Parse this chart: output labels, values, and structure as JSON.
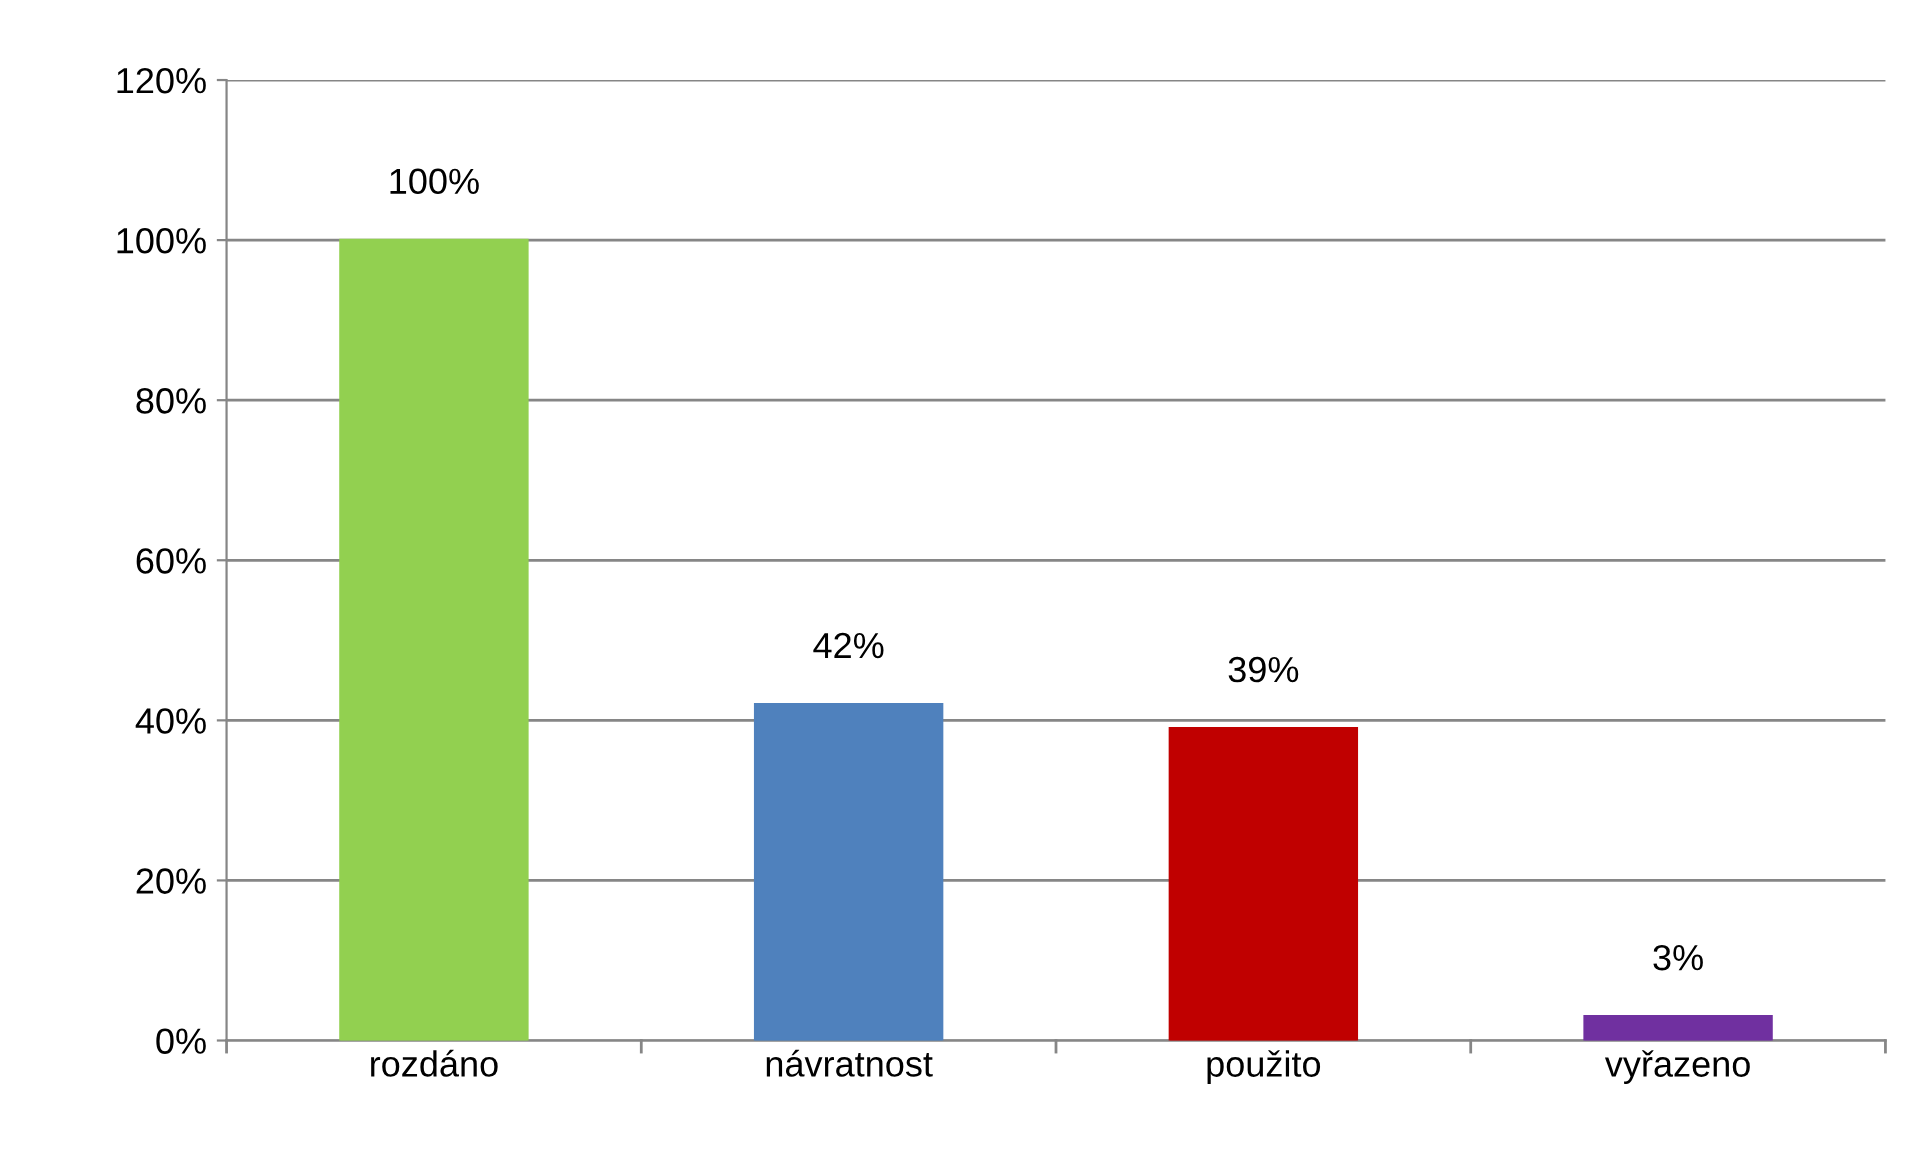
{
  "chart_data": {
    "type": "bar",
    "categories": [
      "rozdáno",
      "návratnost",
      "použito",
      "vyřazeno"
    ],
    "values": [
      100,
      42,
      39,
      3
    ],
    "colors": [
      "#92d050",
      "#4f81bd",
      "#c00000",
      "#7030a0"
    ],
    "value_labels": [
      "100%",
      "42%",
      "39%",
      "3%"
    ],
    "ylim": [
      0,
      120
    ],
    "yticks": [
      {
        "value": 0,
        "label": "0%"
      },
      {
        "value": 20,
        "label": "20%"
      },
      {
        "value": 40,
        "label": "40%"
      },
      {
        "value": 60,
        "label": "60%"
      },
      {
        "value": 80,
        "label": "80%"
      },
      {
        "value": 100,
        "label": "100%"
      },
      {
        "value": 120,
        "label": "120%"
      }
    ],
    "grid": "y",
    "legend": false
  }
}
